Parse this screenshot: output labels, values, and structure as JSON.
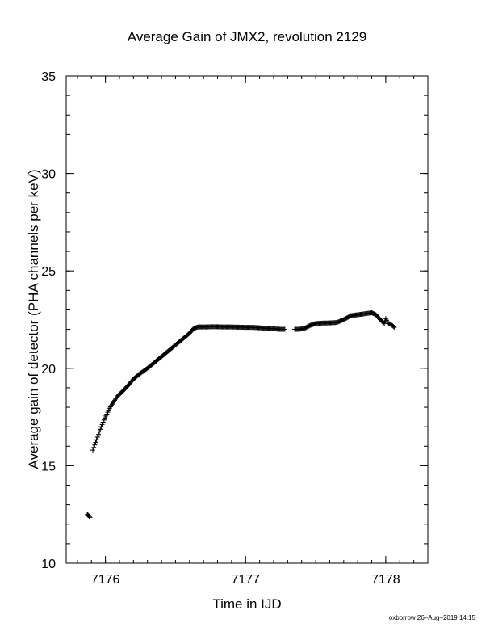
{
  "chart_data": {
    "type": "scatter",
    "title": "Average Gain of JMX2, revolution 2129",
    "xlabel": "Time in IJD",
    "ylabel": "Average gain of detector (PHA channels per keV)",
    "xlim": [
      7175.72,
      7178.3
    ],
    "ylim": [
      10,
      35
    ],
    "xticks": [
      7176,
      7177,
      7178
    ],
    "yticks": [
      10,
      15,
      20,
      25,
      30,
      35
    ],
    "x_minor_step": 0.1,
    "y_minor_step": 1,
    "marker": "plus",
    "grid": false,
    "series": [
      {
        "points": [
          [
            7175.87,
            12.5
          ],
          [
            7175.88,
            12.45
          ],
          [
            7175.89,
            12.35
          ],
          [
            7175.91,
            15.8
          ],
          [
            7175.93,
            16.2
          ],
          [
            7175.95,
            16.6
          ],
          [
            7175.97,
            17.0
          ],
          [
            7175.99,
            17.35
          ],
          [
            7176.01,
            17.65
          ],
          [
            7176.03,
            17.95
          ],
          [
            7176.06,
            18.3
          ],
          [
            7176.09,
            18.6
          ],
          [
            7176.12,
            18.8
          ],
          [
            7176.16,
            19.1
          ],
          [
            7176.2,
            19.45
          ],
          [
            7176.25,
            19.75
          ],
          [
            7176.3,
            20.0
          ],
          [
            7176.35,
            20.3
          ],
          [
            7176.4,
            20.6
          ],
          [
            7176.45,
            20.9
          ],
          [
            7176.5,
            21.2
          ],
          [
            7176.55,
            21.5
          ],
          [
            7176.6,
            21.8
          ],
          [
            7176.63,
            22.05
          ],
          [
            7176.66,
            22.12
          ],
          [
            7176.7,
            22.12
          ],
          [
            7176.75,
            22.13
          ],
          [
            7176.8,
            22.13
          ],
          [
            7176.85,
            22.12
          ],
          [
            7176.9,
            22.12
          ],
          [
            7176.95,
            22.11
          ],
          [
            7177.0,
            22.1
          ],
          [
            7177.05,
            22.1
          ],
          [
            7177.1,
            22.08
          ],
          [
            7177.15,
            22.05
          ],
          [
            7177.2,
            22.03
          ],
          [
            7177.25,
            22.0
          ],
          [
            7177.28,
            22.0
          ],
          [
            7177.35,
            22.0
          ],
          [
            7177.38,
            22.0
          ],
          [
            7177.42,
            22.05
          ],
          [
            7177.46,
            22.2
          ],
          [
            7177.5,
            22.3
          ],
          [
            7177.55,
            22.32
          ],
          [
            7177.6,
            22.33
          ],
          [
            7177.65,
            22.35
          ],
          [
            7177.7,
            22.5
          ],
          [
            7177.75,
            22.7
          ],
          [
            7177.8,
            22.75
          ],
          [
            7177.85,
            22.8
          ],
          [
            7177.9,
            22.85
          ],
          [
            7177.93,
            22.75
          ],
          [
            7177.96,
            22.5
          ],
          [
            7177.99,
            22.3
          ],
          [
            7178.0,
            22.55
          ],
          [
            7178.02,
            22.3
          ],
          [
            7178.04,
            22.25
          ],
          [
            7178.06,
            22.1
          ]
        ]
      }
    ]
  },
  "footer": "oxborrow 26–Aug–2019 14:15"
}
